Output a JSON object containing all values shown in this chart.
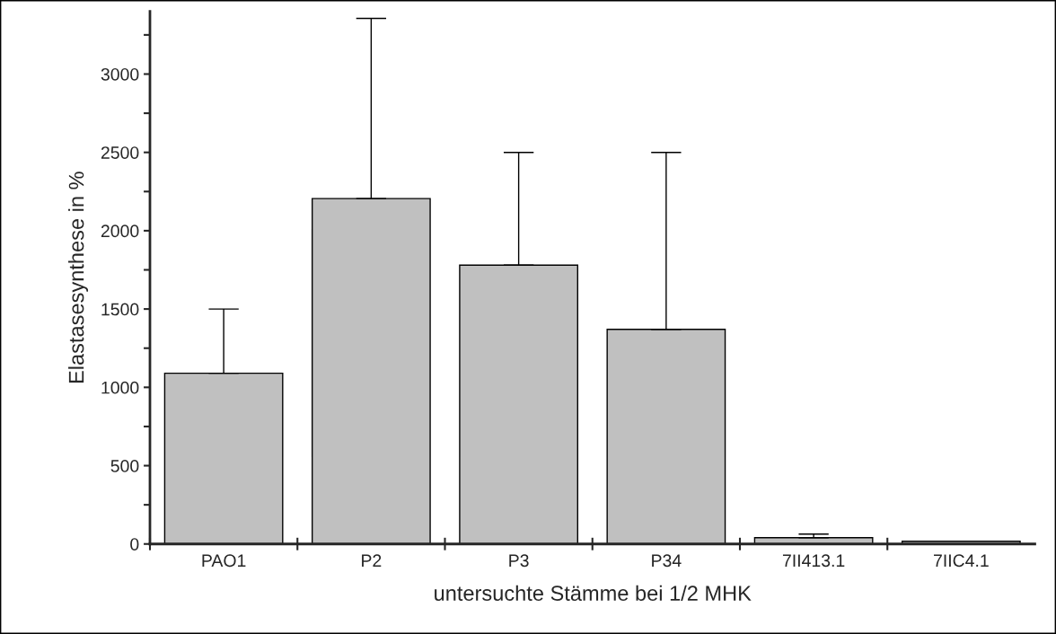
{
  "chart_data": {
    "type": "bar",
    "xlabel": "untersuchte Stämme bei 1/2 MHK",
    "ylabel": "Elastasesynthese in %",
    "categories": [
      "PAO1",
      "P2",
      "P3",
      "P34",
      "7II413.1",
      "7IIC4.1"
    ],
    "values": [
      1090,
      2205,
      1780,
      1370,
      40,
      17
    ],
    "errors": [
      [
        1090,
        1500
      ],
      [
        2205,
        3355
      ],
      [
        1780,
        2500
      ],
      [
        1370,
        2500
      ],
      [
        40,
        63
      ],
      null
    ],
    "color": "#c0c0c0",
    "ylim": [
      0,
      3400
    ],
    "yticks": [
      0,
      {
        "value": 250,
        "label": null
      },
      500,
      {
        "value": 750,
        "label": null
      },
      1000,
      {
        "value": 1250,
        "label": null
      },
      1500,
      {
        "value": 1750,
        "label": null
      },
      2000,
      {
        "value": 2250,
        "label": null
      },
      2500,
      {
        "value": 2750,
        "label": null
      },
      3000,
      {
        "value": 3250,
        "label": null
      }
    ],
    "grid": false,
    "legend": false
  }
}
